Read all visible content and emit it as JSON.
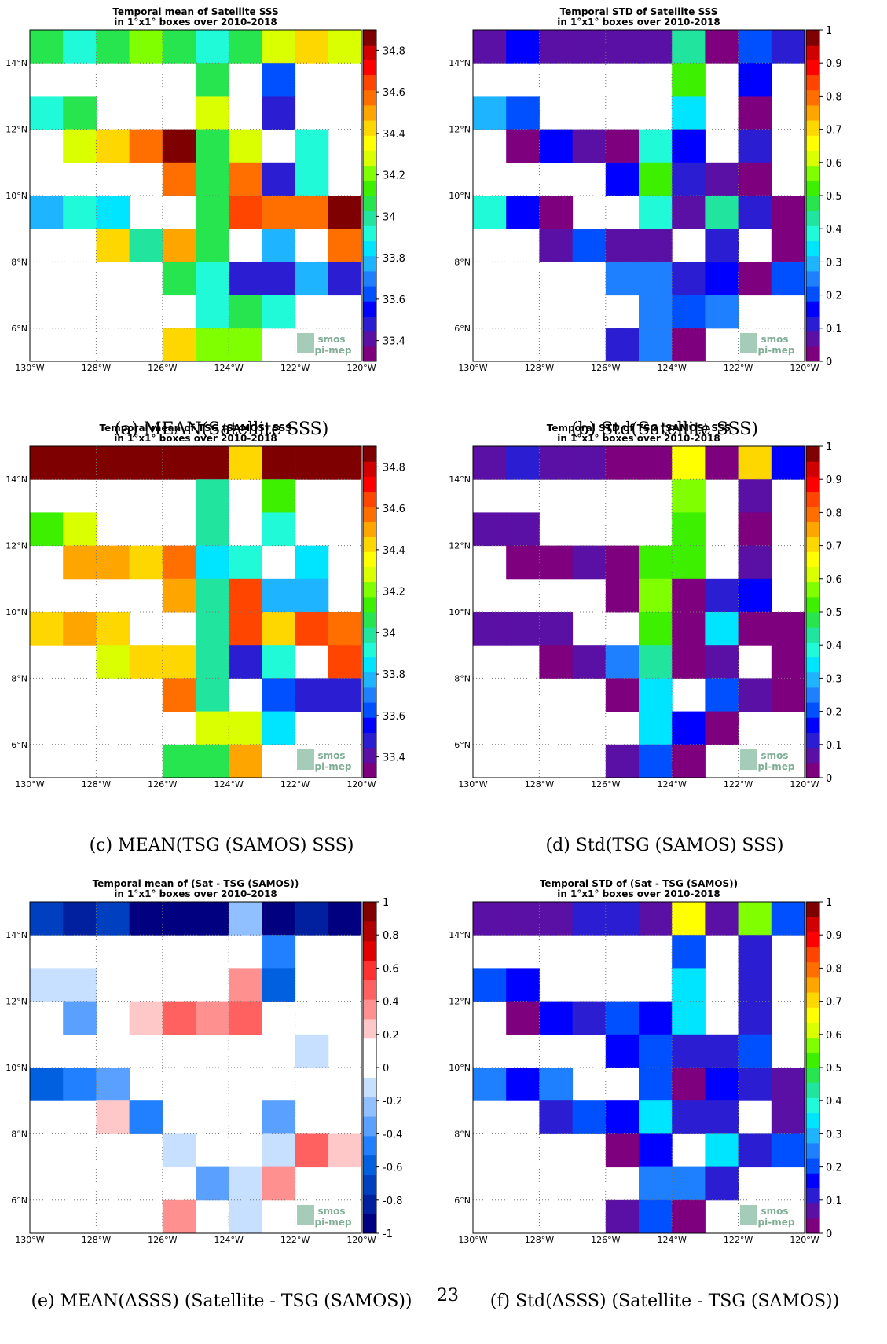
{
  "page_number": "23",
  "logo": {
    "line1": "smos",
    "line2": "pi-mep"
  },
  "map": {
    "lon_labels": [
      "130°W",
      "128°W",
      "126°W",
      "124°W",
      "122°W",
      "120°W"
    ],
    "lat_labels": [
      "6°N",
      "8°N",
      "10°N",
      "12°N",
      "14°N"
    ]
  },
  "colors": {
    "jet": [
      "#7f007f",
      "#5a0fa5",
      "#2b1ed2",
      "#0000ff",
      "#0050ff",
      "#1e7fff",
      "#1fb4ff",
      "#00e5ff",
      "#21fad9",
      "#21e59f",
      "#26e54f",
      "#3cf000",
      "#7fff00",
      "#d9ff00",
      "#ffff00",
      "#ffd700",
      "#ffa500",
      "#ff6f00",
      "#ff4500",
      "#ff0000",
      "#d00000",
      "#7f0000"
    ],
    "diverging": [
      "#000080",
      "#0020a0",
      "#0040c0",
      "#0060e0",
      "#2080ff",
      "#5aa0ff",
      "#90c0ff",
      "#c8e0ff",
      "#ffffff",
      "#ffffff",
      "#ffc8c8",
      "#ff9090",
      "#ff6060",
      "#ff3030",
      "#e00000",
      "#b00000",
      "#800000"
    ]
  },
  "chart_data": [
    {
      "id": "a",
      "type": "heatmap",
      "caption": "(a) MEAN(Satellite SSS)",
      "title": "Temporal mean of Satellite SSS",
      "subtitle": "in 1°x1° boxes over 2010-2018",
      "cmap": "jet",
      "vmin": 33.3,
      "vmax": 34.9,
      "colorbar_ticks": [
        "34.8",
        "34.6",
        "34.4",
        "34.2",
        "34",
        "33.8",
        "33.6",
        "33.4"
      ],
      "colorbar_tick_values": [
        34.8,
        34.6,
        34.4,
        34.2,
        34.0,
        33.8,
        33.6,
        33.4
      ],
      "rows": [
        [
          34.05,
          33.95,
          34.05,
          34.2,
          34.05,
          33.95,
          34.05,
          34.3,
          34.45,
          34.25
        ],
        [
          null,
          null,
          null,
          null,
          null,
          34.05,
          null,
          33.65,
          null,
          null
        ],
        [
          33.95,
          34.05,
          null,
          null,
          null,
          34.3,
          null,
          33.45,
          null,
          null
        ],
        [
          null,
          34.25,
          34.45,
          34.6,
          34.9,
          34.05,
          34.25,
          null,
          33.95,
          null
        ],
        [
          null,
          null,
          null,
          null,
          34.6,
          34.05,
          34.6,
          33.5,
          33.95,
          null
        ],
        [
          33.75,
          33.95,
          33.85,
          null,
          null,
          34.05,
          34.65,
          34.6,
          34.6,
          34.85
        ],
        [
          null,
          null,
          34.4,
          34.0,
          34.5,
          34.05,
          null,
          33.75,
          null,
          34.6
        ],
        [
          null,
          null,
          null,
          null,
          34.05,
          33.95,
          33.45,
          33.5,
          33.75,
          33.45
        ],
        [
          null,
          null,
          null,
          null,
          null,
          33.95,
          34.05,
          33.95,
          null,
          null
        ],
        [
          null,
          null,
          null,
          null,
          34.45,
          34.2,
          34.2,
          null,
          null,
          null
        ]
      ]
    },
    {
      "id": "b",
      "type": "heatmap",
      "caption": "(b) Std(Satellite SSS)",
      "title": "Temporal STD of Satellite SSS",
      "subtitle": "in 1°x1° boxes over 2010-2018",
      "cmap": "jet",
      "vmin": 0,
      "vmax": 1,
      "colorbar_ticks": [
        "1",
        "0.9",
        "0.8",
        "0.7",
        "0.6",
        "0.5",
        "0.4",
        "0.3",
        "0.2",
        "0.1",
        "0"
      ],
      "colorbar_tick_values": [
        1,
        0.9,
        0.8,
        0.7,
        0.6,
        0.5,
        0.4,
        0.3,
        0.2,
        0.1,
        0
      ],
      "rows": [
        [
          0.07,
          0.17,
          0.07,
          0.07,
          0.09,
          0.09,
          0.42,
          0.02,
          0.22,
          0.12
        ],
        [
          null,
          null,
          null,
          null,
          null,
          null,
          0.52,
          null,
          0.17,
          null
        ],
        [
          0.28,
          0.22,
          null,
          null,
          null,
          null,
          0.32,
          null,
          0.02,
          null
        ],
        [
          null,
          0.03,
          0.15,
          0.09,
          0.04,
          0.38,
          0.15,
          null,
          0.1,
          null
        ],
        [
          null,
          null,
          null,
          null,
          0.17,
          0.52,
          0.12,
          0.07,
          0.04,
          null
        ],
        [
          0.38,
          0.17,
          0.03,
          null,
          null,
          0.38,
          0.09,
          0.45,
          0.12,
          0.04
        ],
        [
          null,
          null,
          0.09,
          0.2,
          0.07,
          0.09,
          null,
          0.12,
          null,
          0.04
        ],
        [
          null,
          null,
          null,
          null,
          0.27,
          0.27,
          0.12,
          0.15,
          0.04,
          0.21
        ],
        [
          null,
          null,
          null,
          null,
          null,
          0.26,
          0.2,
          0.24,
          null,
          null
        ],
        [
          null,
          null,
          null,
          null,
          0.11,
          0.26,
          0.03,
          null,
          null,
          null
        ]
      ]
    },
    {
      "id": "c",
      "type": "heatmap",
      "caption": "(c) MEAN(TSG (SAMOS) SSS)",
      "title": "Temporal mean of TSG (SAMOS) SSS",
      "subtitle": "in 1°x1° boxes over 2010-2018",
      "cmap": "jet",
      "vmin": 33.3,
      "vmax": 34.9,
      "colorbar_ticks": [
        "34.8",
        "34.6",
        "34.4",
        "34.2",
        "34",
        "33.8",
        "33.6",
        "33.4"
      ],
      "colorbar_tick_values": [
        34.8,
        34.6,
        34.4,
        34.2,
        34.0,
        33.8,
        33.6,
        33.4
      ],
      "rows": [
        [
          34.9,
          34.9,
          34.9,
          34.9,
          34.9,
          34.9,
          34.4,
          34.9,
          34.9,
          34.9
        ],
        [
          null,
          null,
          null,
          null,
          null,
          34.0,
          null,
          34.1,
          null,
          null
        ],
        [
          34.1,
          34.25,
          null,
          null,
          null,
          34.0,
          null,
          33.95,
          null,
          null
        ],
        [
          null,
          34.5,
          34.5,
          34.45,
          34.6,
          33.85,
          33.95,
          null,
          33.85,
          null
        ],
        [
          null,
          null,
          null,
          null,
          34.5,
          34.0,
          34.65,
          33.75,
          33.75,
          null
        ],
        [
          34.45,
          34.5,
          34.45,
          null,
          null,
          34.0,
          34.65,
          34.45,
          34.65,
          34.6
        ],
        [
          null,
          null,
          34.25,
          34.45,
          34.45,
          34.0,
          33.5,
          33.95,
          null,
          34.65
        ],
        [
          null,
          null,
          null,
          null,
          34.6,
          34.0,
          null,
          33.65,
          33.45,
          33.45
        ],
        [
          null,
          null,
          null,
          null,
          null,
          34.25,
          34.25,
          33.85,
          null,
          null
        ],
        [
          null,
          null,
          null,
          null,
          34.05,
          34.05,
          34.5,
          null,
          null,
          null
        ]
      ]
    },
    {
      "id": "d",
      "type": "heatmap",
      "caption": "(d) Std(TSG (SAMOS) SSS)",
      "title": "Temporal STD of TSG (SAMOS) SSS",
      "subtitle": "in 1°x1° boxes over 2010-2018",
      "cmap": "jet",
      "vmin": 0,
      "vmax": 1,
      "colorbar_ticks": [
        "1",
        "0.9",
        "0.8",
        "0.7",
        "0.6",
        "0.5",
        "0.4",
        "0.3",
        "0.2",
        "0.1",
        "0"
      ],
      "colorbar_tick_values": [
        1,
        0.9,
        0.8,
        0.7,
        0.6,
        0.5,
        0.4,
        0.3,
        0.2,
        0.1,
        0
      ],
      "rows": [
        [
          0.09,
          0.12,
          0.09,
          0.09,
          0.04,
          0.04,
          0.67,
          0.04,
          0.7,
          0.17
        ],
        [
          null,
          null,
          null,
          null,
          null,
          null,
          0.58,
          null,
          0.09,
          null
        ],
        [
          0.09,
          0.09,
          null,
          null,
          null,
          null,
          0.52,
          null,
          0.04,
          null
        ],
        [
          null,
          0.04,
          0.04,
          0.09,
          0.04,
          0.52,
          0.52,
          null,
          0.09,
          null
        ],
        [
          null,
          null,
          null,
          null,
          0.04,
          0.58,
          0.04,
          0.12,
          0.17,
          null
        ],
        [
          0.09,
          0.09,
          0.09,
          null,
          null,
          0.52,
          0.04,
          0.32,
          0.04,
          0.04
        ],
        [
          null,
          null,
          0.04,
          0.09,
          0.27,
          0.45,
          0.04,
          0.09,
          null,
          0.04
        ],
        [
          null,
          null,
          null,
          null,
          0.04,
          0.32,
          null,
          0.2,
          0.09,
          0.04
        ],
        [
          null,
          null,
          null,
          null,
          null,
          0.32,
          0.17,
          0.04,
          null,
          null
        ],
        [
          null,
          null,
          null,
          null,
          0.09,
          0.2,
          0.04,
          null,
          null,
          null
        ]
      ]
    },
    {
      "id": "e",
      "type": "heatmap",
      "caption": "(e) MEAN(ΔSSS) (Satellite - TSG (SAMOS))",
      "title": "Temporal mean of (Sat - TSG (SAMOS))",
      "subtitle": "in 1°x1° boxes over 2010-2018",
      "cmap": "diverging",
      "vmin": -1,
      "vmax": 1,
      "colorbar_ticks": [
        "1",
        "0.8",
        "0.6",
        "0.4",
        "0.2",
        "0",
        "-0.2",
        "-0.4",
        "-0.6",
        "-0.8",
        "-1"
      ],
      "colorbar_tick_values": [
        1,
        0.8,
        0.6,
        0.4,
        0.2,
        0,
        -0.2,
        -0.4,
        -0.6,
        -0.8,
        -1
      ],
      "rows": [
        [
          -0.75,
          -0.85,
          -0.7,
          -0.95,
          -0.95,
          -0.95,
          -0.25,
          -0.95,
          -0.8,
          -0.9
        ],
        [
          null,
          null,
          null,
          null,
          null,
          null,
          null,
          -0.5,
          null,
          null
        ],
        [
          -0.15,
          -0.15,
          null,
          null,
          null,
          null,
          0.35,
          -0.6,
          null,
          null
        ],
        [
          null,
          -0.35,
          null,
          0.18,
          0.5,
          0.35,
          0.45,
          null,
          null,
          null
        ],
        [
          null,
          null,
          null,
          null,
          null,
          null,
          null,
          null,
          -0.15,
          null
        ],
        [
          -0.6,
          -0.5,
          -0.3,
          null,
          null,
          0.15,
          null,
          0.15,
          null,
          0.15
        ],
        [
          null,
          null,
          0.2,
          -0.45,
          null,
          null,
          null,
          -0.3,
          null,
          null
        ],
        [
          null,
          null,
          null,
          null,
          -0.15,
          null,
          null,
          -0.15,
          0.5,
          0.2
        ],
        [
          null,
          null,
          null,
          null,
          null,
          -0.3,
          -0.15,
          0.35,
          null,
          null
        ],
        [
          null,
          null,
          null,
          null,
          0.35,
          null,
          -0.15,
          null,
          null,
          null
        ]
      ]
    },
    {
      "id": "f",
      "type": "heatmap",
      "caption": "(f) Std(ΔSSS) (Satellite - TSG (SAMOS))",
      "title": "Temporal STD of (Sat - TSG (SAMOS))",
      "subtitle": "in 1°x1° boxes over 2010-2018",
      "cmap": "jet",
      "vmin": 0,
      "vmax": 1,
      "colorbar_ticks": [
        "1",
        "0.9",
        "0.8",
        "0.7",
        "0.6",
        "0.5",
        "0.4",
        "0.3",
        "0.2",
        "0.1",
        "0"
      ],
      "colorbar_tick_values": [
        1,
        0.9,
        0.8,
        0.7,
        0.6,
        0.5,
        0.4,
        0.3,
        0.2,
        0.1,
        0
      ],
      "rows": [
        [
          0.07,
          0.07,
          0.09,
          0.12,
          0.12,
          0.09,
          0.67,
          0.09,
          0.58,
          0.2
        ],
        [
          null,
          null,
          null,
          null,
          null,
          null,
          0.2,
          null,
          0.12,
          null
        ],
        [
          0.2,
          0.17,
          null,
          null,
          null,
          null,
          0.32,
          null,
          0.12,
          null
        ],
        [
          null,
          0.02,
          0.17,
          0.12,
          0.2,
          0.17,
          0.32,
          null,
          0.12,
          null
        ],
        [
          null,
          null,
          null,
          null,
          0.17,
          0.2,
          0.12,
          0.12,
          0.2,
          null
        ],
        [
          0.27,
          0.17,
          0.27,
          null,
          null,
          0.2,
          0.04,
          0.17,
          0.12,
          0.09
        ],
        [
          null,
          null,
          0.12,
          0.2,
          0.17,
          0.32,
          0.12,
          0.12,
          null,
          0.09
        ],
        [
          null,
          null,
          null,
          null,
          0.04,
          0.17,
          null,
          0.32,
          0.12,
          0.2
        ],
        [
          null,
          null,
          null,
          null,
          null,
          0.24,
          0.24,
          0.12,
          null,
          null
        ],
        [
          null,
          null,
          null,
          null,
          0.07,
          0.2,
          0.03,
          null,
          null,
          null
        ]
      ]
    }
  ]
}
